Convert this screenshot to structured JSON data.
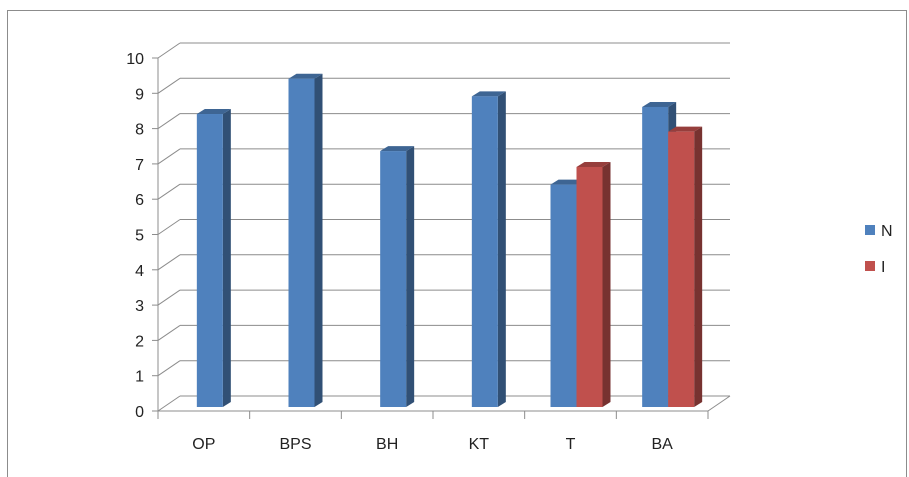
{
  "chart_data": {
    "type": "bar",
    "categories": [
      "OP",
      "BPS",
      "BH",
      "KT",
      "T",
      "BA"
    ],
    "series": [
      {
        "name": "N",
        "values": [
          8.3,
          9.3,
          7.25,
          8.8,
          6.3,
          8.5
        ],
        "color": "#4f81bd"
      },
      {
        "name": "I",
        "values": [
          null,
          null,
          null,
          null,
          6.8,
          7.8
        ],
        "color": "#c0504d"
      }
    ],
    "ylim": [
      0,
      10
    ],
    "yticks": [
      "0",
      "1",
      "2",
      "3",
      "4",
      "5",
      "6",
      "7",
      "8",
      "9",
      "10"
    ],
    "grid": true,
    "legend": "right",
    "view": "3d-column"
  }
}
